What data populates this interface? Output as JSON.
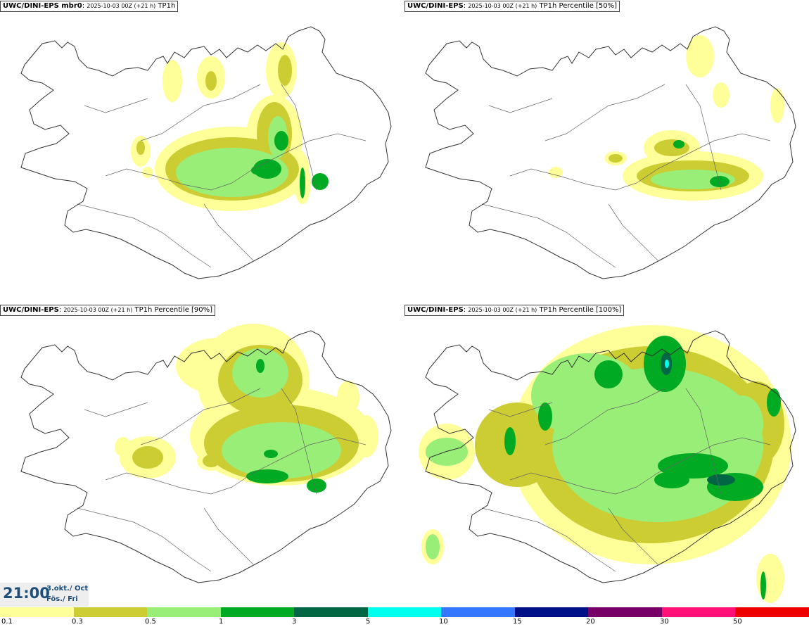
{
  "panels": [
    {
      "model": "UWC/DINI-EPS mbr0",
      "run": "2025-10-03 00Z (+21 h)",
      "product": "TP1h"
    },
    {
      "model": "UWC/DINI-EPS",
      "run": "2025-10-03 00Z (+21 h)",
      "product": "TP1h Percentile [50%]"
    },
    {
      "model": "UWC/DINI-EPS",
      "run": "2025-10-03 00Z (+21 h)",
      "product": "TP1h Percentile [90%]"
    },
    {
      "model": "UWC/DINI-EPS",
      "run": "2025-10-03 00Z (+21 h)",
      "product": "TP1h Percentile [100%]"
    }
  ],
  "time": {
    "hour": "21:00",
    "date_line1": "3.okt./ Oct",
    "date_line2": "Fös./ Fri"
  },
  "legend": {
    "colors": [
      "#ffff99",
      "#cccc33",
      "#99ee77",
      "#00aa22",
      "#006644",
      "#00ffee",
      "#3377ff",
      "#001188",
      "#770066",
      "#ff1177",
      "#ee0000"
    ],
    "ticks": [
      "0.1",
      "0.3",
      "0.5",
      "1",
      "3",
      "5",
      "10",
      "15",
      "20",
      "30",
      "50"
    ]
  }
}
